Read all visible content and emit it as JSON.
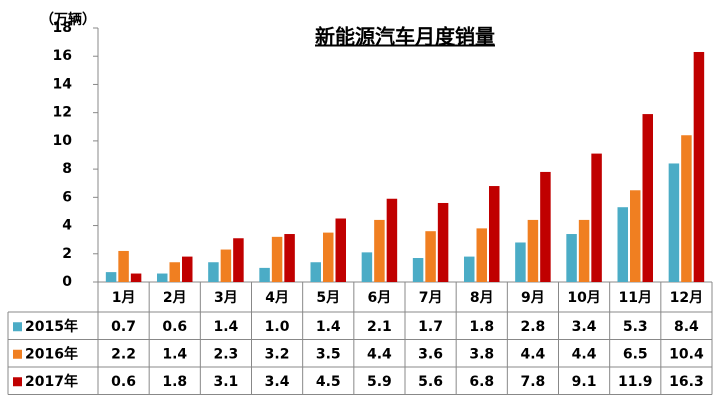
{
  "chart_data": {
    "type": "bar",
    "title": "新能源汽车月度销量",
    "unit_label": "（万辆）",
    "categories": [
      "1月",
      "2月",
      "3月",
      "4月",
      "5月",
      "6月",
      "7月",
      "8月",
      "9月",
      "10月",
      "11月",
      "12月"
    ],
    "series": [
      {
        "name": "2015年",
        "color": "#4bacc6",
        "values": [
          0.7,
          0.6,
          1.4,
          1.0,
          1.4,
          2.1,
          1.7,
          1.8,
          2.8,
          3.4,
          5.3,
          8.4
        ],
        "value_labels": [
          "0.7",
          "0.6",
          "1.4",
          "1.0",
          "1.4",
          "2.1",
          "1.7",
          "1.8",
          "2.8",
          "3.4",
          "5.3",
          "8.4"
        ]
      },
      {
        "name": "2016年",
        "color": "#f07f21",
        "values": [
          2.2,
          1.4,
          2.3,
          3.2,
          3.5,
          4.4,
          3.6,
          3.8,
          4.4,
          4.4,
          6.5,
          10.4
        ]
      },
      {
        "name": "2017年",
        "color": "#c00000",
        "values": [
          0.6,
          1.8,
          3.1,
          3.4,
          4.5,
          5.9,
          5.6,
          6.8,
          7.8,
          9.1,
          11.9,
          16.3
        ]
      }
    ],
    "ylim": [
      0,
      18
    ],
    "yticks": [
      0,
      2,
      4,
      6,
      8,
      10,
      12,
      14,
      16,
      18
    ],
    "grid": false,
    "data_table": true
  }
}
